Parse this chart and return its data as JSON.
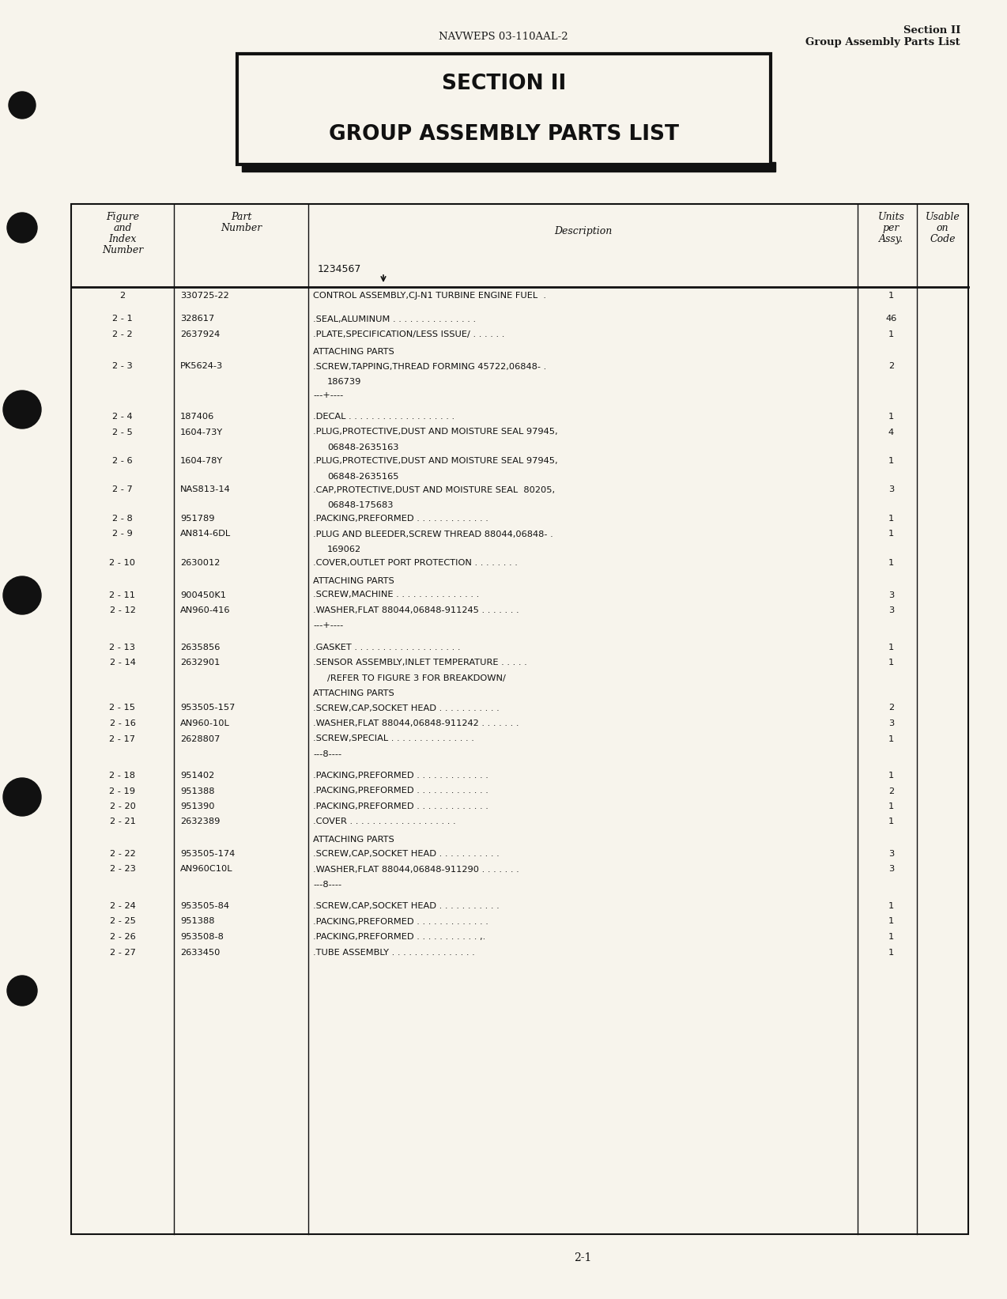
{
  "page_color": "#f7f4ec",
  "header_center": "NAVWEPS 03-110AAL-2",
  "header_right_line1": "Section II",
  "header_right_line2": "Group Assembly Parts List",
  "section_title_line1": "SECTION II",
  "section_title_line2": "GROUP ASSEMBLY PARTS LIST",
  "col_subheader": "1234567",
  "footer_page": "2-1",
  "table_rows": [
    {
      "fig": "2",
      "part": "330725-22",
      "desc": "CONTROL ASSEMBLY,CJ-N1 TURBINE ENGINE FUEL  .",
      "units": "1",
      "style": "normal"
    },
    {
      "fig": "",
      "part": "",
      "desc": "",
      "units": "",
      "style": "spacer"
    },
    {
      "fig": "2 - 1",
      "part": "328617",
      "desc": ".SEAL,ALUMINUM . . . . . . . . . . . . . . .",
      "units": "46",
      "style": "normal"
    },
    {
      "fig": "2 - 2",
      "part": "2637924",
      "desc": ".PLATE,SPECIFICATION/LESS ISSUE/ . . . . . .",
      "units": "1",
      "style": "normal"
    },
    {
      "fig": "",
      "part": "",
      "desc": "ATTACHING PARTS",
      "units": "",
      "style": "label"
    },
    {
      "fig": "2 - 3",
      "part": "PK5624-3",
      "desc": ".SCREW,TAPPING,THREAD FORMING 45722,06848- .",
      "units": "2",
      "style": "normal"
    },
    {
      "fig": "",
      "part": "",
      "desc": "   186739",
      "units": "",
      "style": "continuation"
    },
    {
      "fig": "",
      "part": "",
      "desc": "---+----",
      "units": "",
      "style": "separator"
    },
    {
      "fig": "",
      "part": "",
      "desc": "",
      "units": "",
      "style": "spacer"
    },
    {
      "fig": "2 - 4",
      "part": "187406",
      "desc": ".DECAL . . . . . . . . . . . . . . . . . . .",
      "units": "1",
      "style": "normal"
    },
    {
      "fig": "2 - 5",
      "part": "1604-73Y",
      "desc": ".PLUG,PROTECTIVE,DUST AND MOISTURE SEAL 97945,",
      "units": "4",
      "style": "normal"
    },
    {
      "fig": "",
      "part": "",
      "desc": "   06848-2635163",
      "units": "",
      "style": "continuation"
    },
    {
      "fig": "2 - 6",
      "part": "1604-78Y",
      "desc": ".PLUG,PROTECTIVE,DUST AND MOISTURE SEAL 97945,",
      "units": "1",
      "style": "normal"
    },
    {
      "fig": "",
      "part": "",
      "desc": "   06848-2635165",
      "units": "",
      "style": "continuation"
    },
    {
      "fig": "2 - 7",
      "part": "NAS813-14",
      "desc": ".CAP,PROTECTIVE,DUST AND MOISTURE SEAL  80205,",
      "units": "3",
      "style": "normal"
    },
    {
      "fig": "",
      "part": "",
      "desc": "   06848-175683",
      "units": "",
      "style": "continuation"
    },
    {
      "fig": "2 - 8",
      "part": "951789",
      "desc": ".PACKING,PREFORMED . . . . . . . . . . . . .",
      "units": "1",
      "style": "normal"
    },
    {
      "fig": "2 - 9",
      "part": "AN814-6DL",
      "desc": ".PLUG AND BLEEDER,SCREW THREAD 88044,06848- .",
      "units": "1",
      "style": "normal"
    },
    {
      "fig": "",
      "part": "",
      "desc": "   169062",
      "units": "",
      "style": "continuation"
    },
    {
      "fig": "2 - 10",
      "part": "2630012",
      "desc": ".COVER,OUTLET PORT PROTECTION . . . . . . . .",
      "units": "1",
      "style": "normal"
    },
    {
      "fig": "",
      "part": "",
      "desc": "ATTACHING PARTS",
      "units": "",
      "style": "label"
    },
    {
      "fig": "2 - 11",
      "part": "900450K1",
      "desc": ".SCREW,MACHINE . . . . . . . . . . . . . . .",
      "units": "3",
      "style": "normal"
    },
    {
      "fig": "2 - 12",
      "part": "AN960-416",
      "desc": ".WASHER,FLAT 88044,06848-911245 . . . . . . .",
      "units": "3",
      "style": "normal"
    },
    {
      "fig": "",
      "part": "",
      "desc": "---+----",
      "units": "",
      "style": "separator"
    },
    {
      "fig": "",
      "part": "",
      "desc": "",
      "units": "",
      "style": "spacer"
    },
    {
      "fig": "2 - 13",
      "part": "2635856",
      "desc": ".GASKET . . . . . . . . . . . . . . . . . . .",
      "units": "1",
      "style": "normal"
    },
    {
      "fig": "2 - 14",
      "part": "2632901",
      "desc": ".SENSOR ASSEMBLY,INLET TEMPERATURE . . . . .",
      "units": "1",
      "style": "normal"
    },
    {
      "fig": "",
      "part": "",
      "desc": "   /REFER TO FIGURE 3 FOR BREAKDOWN/",
      "units": "",
      "style": "continuation"
    },
    {
      "fig": "",
      "part": "",
      "desc": "ATTACHING PARTS",
      "units": "",
      "style": "label"
    },
    {
      "fig": "2 - 15",
      "part": "953505-157",
      "desc": ".SCREW,CAP,SOCKET HEAD . . . . . . . . . . .",
      "units": "2",
      "style": "normal"
    },
    {
      "fig": "2 - 16",
      "part": "AN960-10L",
      "desc": ".WASHER,FLAT 88044,06848-911242 . . . . . . .",
      "units": "3",
      "style": "normal"
    },
    {
      "fig": "2 - 17",
      "part": "2628807",
      "desc": ".SCREW,SPECIAL . . . . . . . . . . . . . . .",
      "units": "1",
      "style": "normal"
    },
    {
      "fig": "",
      "part": "",
      "desc": "---8----",
      "units": "",
      "style": "separator"
    },
    {
      "fig": "",
      "part": "",
      "desc": "",
      "units": "",
      "style": "spacer"
    },
    {
      "fig": "2 - 18",
      "part": "951402",
      "desc": ".PACKING,PREFORMED . . . . . . . . . . . . .",
      "units": "1",
      "style": "normal"
    },
    {
      "fig": "2 - 19",
      "part": "951388",
      "desc": ".PACKING,PREFORMED . . . . . . . . . . . . .",
      "units": "2",
      "style": "normal"
    },
    {
      "fig": "2 - 20",
      "part": "951390",
      "desc": ".PACKING,PREFORMED . . . . . . . . . . . . .",
      "units": "1",
      "style": "normal"
    },
    {
      "fig": "2 - 21",
      "part": "2632389",
      "desc": ".COVER . . . . . . . . . . . . . . . . . . .",
      "units": "1",
      "style": "normal"
    },
    {
      "fig": "",
      "part": "",
      "desc": "ATTACHING PARTS",
      "units": "",
      "style": "label"
    },
    {
      "fig": "2 - 22",
      "part": "953505-174",
      "desc": ".SCREW,CAP,SOCKET HEAD . . . . . . . . . . .",
      "units": "3",
      "style": "normal"
    },
    {
      "fig": "2 - 23",
      "part": "AN960C10L",
      "desc": ".WASHER,FLAT 88044,06848-911290 . . . . . . .",
      "units": "3",
      "style": "normal"
    },
    {
      "fig": "",
      "part": "",
      "desc": "---8----",
      "units": "",
      "style": "separator"
    },
    {
      "fig": "",
      "part": "",
      "desc": "",
      "units": "",
      "style": "spacer"
    },
    {
      "fig": "2 - 24",
      "part": "953505-84",
      "desc": ".SCREW,CAP,SOCKET HEAD . . . . . . . . . . .",
      "units": "1",
      "style": "normal"
    },
    {
      "fig": "2 - 25",
      "part": "951388",
      "desc": ".PACKING,PREFORMED . . . . . . . . . . . . .",
      "units": "1",
      "style": "normal"
    },
    {
      "fig": "2 - 26",
      "part": "953508-8",
      "desc": ".PACKING,PREFORMED . . . . . . . . . . . ,.",
      "units": "1",
      "style": "normal"
    },
    {
      "fig": "2 - 27",
      "part": "2633450",
      "desc": ".TUBE ASSEMBLY . . . . . . . . . . . . . . .",
      "units": "1",
      "style": "normal"
    }
  ]
}
